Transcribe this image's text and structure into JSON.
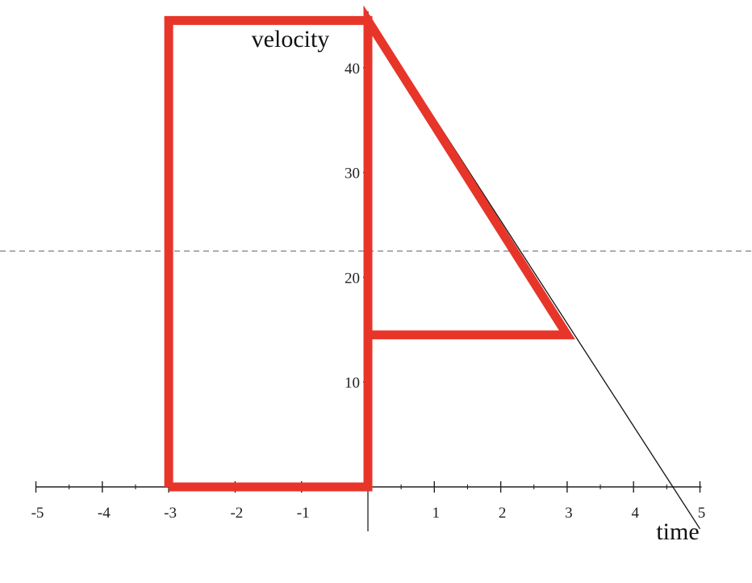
{
  "chart_data": {
    "type": "line",
    "xlabel": "time",
    "ylabel": "velocity",
    "xlim": [
      -5,
      5
    ],
    "ylim": [
      0,
      45
    ],
    "x_ticks": [
      -5,
      -4,
      -3,
      -2,
      -1,
      1,
      2,
      3,
      4,
      5
    ],
    "x_tick_labels": [
      "-5",
      "-4",
      "-3",
      "-2",
      "-1",
      "1",
      "2",
      "3",
      "4",
      "5"
    ],
    "y_ticks": [
      10,
      20,
      30,
      40
    ],
    "y_tick_labels": [
      "10",
      "20",
      "30",
      "40"
    ],
    "series": [
      {
        "color": "#111111",
        "points": [
          [
            0,
            45
          ],
          [
            5,
            -4
          ]
        ]
      },
      {
        "color": "#e8352a",
        "points": [
          [
            -3,
            0
          ],
          [
            -3,
            44.5
          ],
          [
            0,
            44.5
          ],
          [
            0,
            0
          ],
          [
            -3,
            0
          ]
        ]
      },
      {
        "color": "#e8352a",
        "points": [
          [
            0,
            14.5
          ],
          [
            0,
            44.5
          ],
          [
            3,
            14.5
          ],
          [
            0,
            14.5
          ]
        ]
      }
    ],
    "reference_line": {
      "y": 22.5,
      "style": "dashed",
      "color": "#888888"
    },
    "grid": false
  }
}
